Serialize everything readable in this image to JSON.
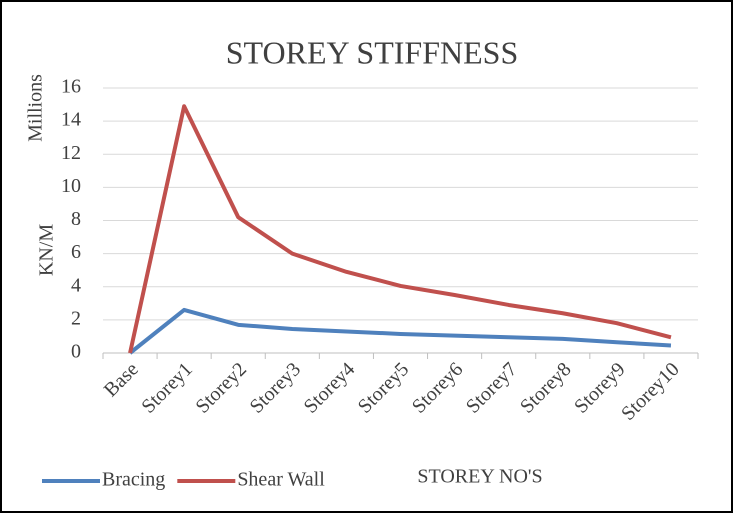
{
  "chart_data": {
    "type": "line",
    "title": "STOREY STIFFNESS",
    "y_unit_label": "Millions",
    "ylabel": "KN/M",
    "xlabel": "STOREY NO'S",
    "categories": [
      "Base",
      "Storey1",
      "Storey2",
      "Storey3",
      "Storey4",
      "Storey5",
      "Storey6",
      "Storey7",
      "Storey8",
      "Storey9",
      "Storey10"
    ],
    "series": [
      {
        "name": "Bracing",
        "color": "#4f81bd",
        "values": [
          0,
          2.6,
          1.7,
          1.45,
          1.3,
          1.15,
          1.05,
          0.95,
          0.85,
          0.65,
          0.45
        ]
      },
      {
        "name": "Shear Wall",
        "color": "#c0504d",
        "values": [
          0,
          14.9,
          8.2,
          6.0,
          4.9,
          4.05,
          3.5,
          2.9,
          2.4,
          1.8,
          0.95
        ]
      }
    ],
    "ylim": [
      0,
      16
    ],
    "yticks": [
      0,
      2,
      4,
      6,
      8,
      10,
      12,
      14,
      16
    ],
    "grid": true,
    "legend": "bottom-left"
  }
}
